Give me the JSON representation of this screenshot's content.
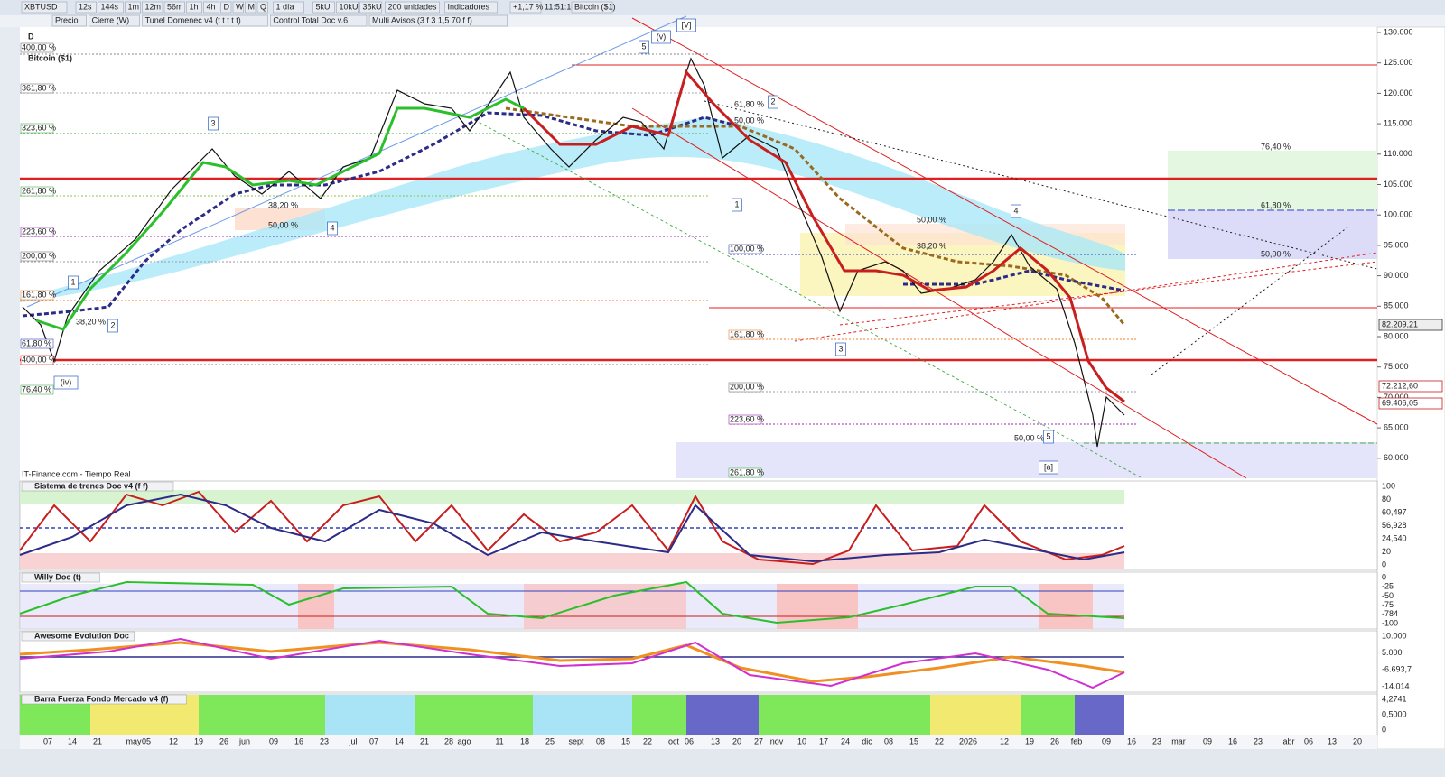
{
  "toolbar": {
    "symbol": "XBTUSD",
    "timeframes": [
      "12s",
      "144s",
      "1m",
      "12m",
      "56m",
      "1h",
      "4h",
      "D",
      "W",
      "M",
      "Q"
    ],
    "period": "1 día",
    "units": [
      "5kU",
      "10kU",
      "35kU"
    ],
    "bars": "200 unidades",
    "indicators": "Indicadores",
    "change": "+1,17 %",
    "time": "11:51:18",
    "name": "Bitcoin ($1)"
  },
  "tabs": [
    "Precio",
    "Cierre (W)",
    "Tunel Domenec v4 (t t t t t)",
    "Control Total Doc v.6",
    "Multi Avisos (3 f 3 1,5 70 f f)"
  ],
  "chart": {
    "period": "D",
    "title": "Bitcoin ($1)",
    "source": "IT-Finance.com - Tiempo Real",
    "price_axis": [
      "130.000",
      "125.000",
      "120.000",
      "115.000",
      "110.000",
      "105.000",
      "100.000",
      "95.000",
      "90.000",
      "85.000",
      "80.000",
      "75.000",
      "70.000",
      "65.000",
      "60.000"
    ],
    "price_tags": [
      "82.209,21",
      "72.212,60",
      "69.406,05"
    ],
    "fib_labels": [
      "400,00 %",
      "361,80 %",
      "323,60 %",
      "261,80 %",
      "223,60 %",
      "200,00 %",
      "161,80 %",
      "61,80 %",
      "400,00 %",
      "76,40 %",
      "38,20 %",
      "38,20 %",
      "50,00 %",
      "61,80 %",
      "50,00 %",
      "100,00 %",
      "161,80 %",
      "200,00 %",
      "223,60 %",
      "261,80 %",
      "50,00 %",
      "38,20 %",
      "50,00 %",
      "76,40 %",
      "61,80 %",
      "50,00 %"
    ],
    "wave_labels": [
      "1",
      "2",
      "3",
      "4",
      "(iv)",
      "5",
      "(v)",
      "[V]",
      "1",
      "2",
      "3",
      "4",
      "5",
      "[a]"
    ]
  },
  "panels": [
    {
      "title": "Sistema de trenes Doc v4 (f f)",
      "axis": [
        "100",
        "80",
        "60,497",
        "56,928",
        "24,540",
        "20",
        "0"
      ]
    },
    {
      "title": "Willy Doc (t)",
      "axis": [
        "0",
        "-25",
        "-50",
        "-75",
        "-784",
        "-100"
      ]
    },
    {
      "title": "Awesome Evolution Doc",
      "axis": [
        "10.000",
        "5.000",
        "-6.693,7",
        "-14.014"
      ]
    },
    {
      "title": "Barra Fuerza Fondo Mercado v4 (f)",
      "axis": [
        "4,2741",
        "0,5000",
        "0"
      ]
    }
  ],
  "dates": [
    "07",
    "14",
    "21",
    "may",
    "05",
    "12",
    "19",
    "26",
    "jun",
    "09",
    "16",
    "23",
    "jul",
    "07",
    "14",
    "21",
    "28",
    "ago",
    "11",
    "18",
    "25",
    "sept",
    "08",
    "15",
    "22",
    "oct",
    "06",
    "13",
    "20",
    "27",
    "nov",
    "10",
    "17",
    "24",
    "dic",
    "08",
    "15",
    "22",
    "2026",
    "12",
    "19",
    "26",
    "feb",
    "09",
    "16",
    "23",
    "mar",
    "09",
    "16",
    "23",
    "abr",
    "06",
    "13",
    "20"
  ]
}
